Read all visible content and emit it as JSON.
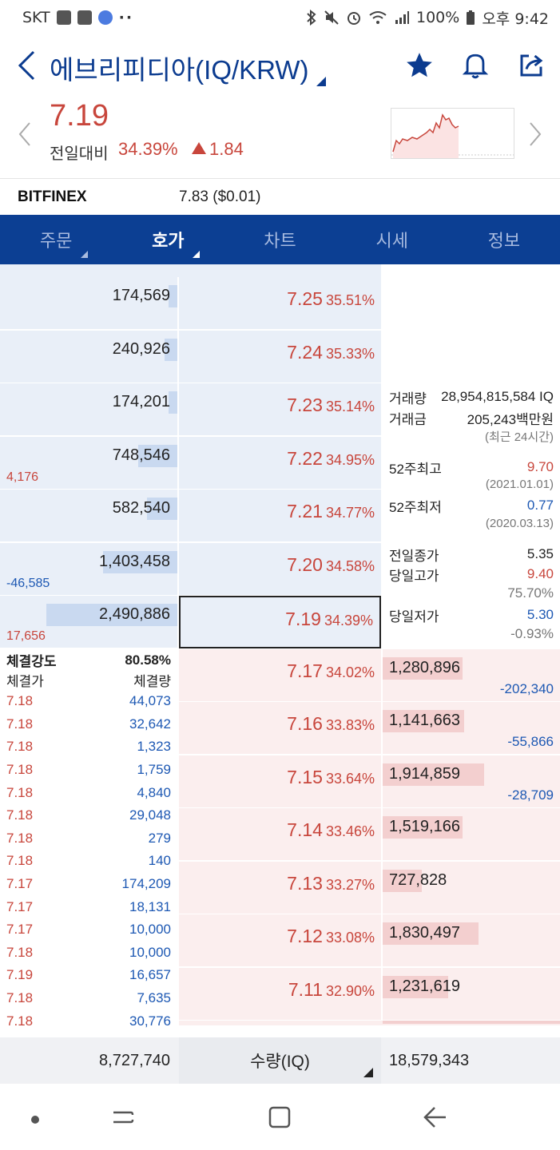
{
  "status_bar": {
    "carrier": "SKT",
    "battery": "100%",
    "time": "오후 9:42"
  },
  "header": {
    "title": "에브리피디아(IQ/KRW)",
    "icons": [
      "back-icon",
      "star-icon",
      "bell-icon",
      "share-icon"
    ]
  },
  "summary": {
    "price": "7.19",
    "change_label": "전일대비",
    "change_pct": "34.39%",
    "change_abs": "1.84",
    "price_color": "#c8463c"
  },
  "bitfinex": {
    "name": "BITFINEX",
    "value": "7.83 ($0.01)"
  },
  "tabs": [
    {
      "label": "주문",
      "active": false,
      "caret": true
    },
    {
      "label": "호가",
      "active": true,
      "caret": true
    },
    {
      "label": "차트",
      "active": false,
      "caret": false
    },
    {
      "label": "시세",
      "active": false,
      "caret": false
    },
    {
      "label": "정보",
      "active": false,
      "caret": false
    }
  ],
  "asks": [
    {
      "qty": "174,569",
      "bar": 0.05,
      "price": "7.25",
      "pct": "35.51%",
      "delta": "",
      "delta_color": ""
    },
    {
      "qty": "240,926",
      "bar": 0.07,
      "price": "7.24",
      "pct": "35.33%",
      "delta": "",
      "delta_color": ""
    },
    {
      "qty": "174,201",
      "bar": 0.05,
      "price": "7.23",
      "pct": "35.14%",
      "delta": "",
      "delta_color": ""
    },
    {
      "qty": "748,546",
      "bar": 0.22,
      "price": "7.22",
      "pct": "34.95%",
      "delta": "4,176",
      "delta_color": "red"
    },
    {
      "qty": "582,540",
      "bar": 0.17,
      "price": "7.21",
      "pct": "34.77%",
      "delta": "",
      "delta_color": ""
    },
    {
      "qty": "1,403,458",
      "bar": 0.42,
      "price": "7.20",
      "pct": "34.58%",
      "delta": "-46,585",
      "delta_color": "blue"
    },
    {
      "qty": "2,490,886",
      "bar": 0.74,
      "price": "7.19",
      "pct": "34.39%",
      "delta": "17,656",
      "delta_color": "red"
    }
  ],
  "bids": [
    {
      "price": "7.17",
      "pct": "34.02%",
      "qty": "1,280,896",
      "bar": 0.45,
      "delta": "-202,340"
    },
    {
      "price": "7.16",
      "pct": "33.83%",
      "qty": "1,141,663",
      "bar": 0.46,
      "delta": "-55,866"
    },
    {
      "price": "7.15",
      "pct": "33.64%",
      "qty": "1,914,859",
      "bar": 0.57,
      "delta": "-28,709"
    },
    {
      "price": "7.14",
      "pct": "33.46%",
      "qty": "1,519,166",
      "bar": 0.45,
      "delta": ""
    },
    {
      "price": "7.13",
      "pct": "33.27%",
      "qty": "727,828",
      "bar": 0.22,
      "delta": ""
    },
    {
      "price": "7.12",
      "pct": "33.08%",
      "qty": "1,830,497",
      "bar": 0.54,
      "delta": ""
    },
    {
      "price": "7.11",
      "pct": "32.90%",
      "qty": "1,231,619",
      "bar": 0.37,
      "delta": ""
    }
  ],
  "info": {
    "volume_label": "거래량",
    "volume": "28,954,815,584 IQ",
    "amount_label": "거래금",
    "amount": "205,243백만원",
    "amount_note": "(최근 24시간)",
    "high52_label": "52주최고",
    "high52": "9.70",
    "high52_date": "(2021.01.01)",
    "low52_label": "52주최저",
    "low52": "0.77",
    "low52_date": "(2020.03.13)",
    "prev_close_label": "전일종가",
    "prev_close": "5.35",
    "day_high_label": "당일고가",
    "day_high": "9.40",
    "day_high_pct": "75.70%",
    "day_low_label": "당일저가",
    "day_low": "5.30",
    "day_low_pct": "-0.93%"
  },
  "trades": {
    "strength_label": "체결강도",
    "strength": "80.58%",
    "price_header": "체결가",
    "qty_header": "체결량",
    "rows": [
      {
        "price": "7.18",
        "qty": "44,073"
      },
      {
        "price": "7.18",
        "qty": "32,642"
      },
      {
        "price": "7.18",
        "qty": "1,323"
      },
      {
        "price": "7.18",
        "qty": "1,759"
      },
      {
        "price": "7.18",
        "qty": "4,840"
      },
      {
        "price": "7.18",
        "qty": "29,048"
      },
      {
        "price": "7.18",
        "qty": "279"
      },
      {
        "price": "7.18",
        "qty": "140"
      },
      {
        "price": "7.17",
        "qty": "174,209"
      },
      {
        "price": "7.17",
        "qty": "18,131"
      },
      {
        "price": "7.17",
        "qty": "10,000"
      },
      {
        "price": "7.18",
        "qty": "10,000"
      },
      {
        "price": "7.19",
        "qty": "16,657"
      },
      {
        "price": "7.18",
        "qty": "7,635"
      },
      {
        "price": "7.18",
        "qty": "30,776"
      }
    ]
  },
  "footer": {
    "ask_total": "8,727,740",
    "unit_label": "수량(IQ)",
    "bid_total": "18,579,343"
  }
}
